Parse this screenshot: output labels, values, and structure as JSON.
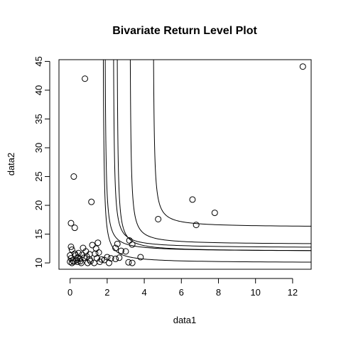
{
  "chart_data": {
    "type": "scatter",
    "title": "Bivariate Return Level Plot",
    "xlabel": "data1",
    "ylabel": "data2",
    "xlim": [
      -0.6,
      13.0
    ],
    "ylim": [
      8.9,
      45.3
    ],
    "x_ticks": [
      0,
      2,
      4,
      6,
      8,
      10,
      12
    ],
    "y_ticks": [
      10,
      15,
      20,
      25,
      30,
      35,
      40,
      45
    ],
    "grid": false,
    "legend": "none",
    "point_color": "#000000",
    "points": [
      [
        12.55,
        44.1
      ],
      [
        0.8,
        42.0
      ],
      [
        0.2,
        25.0
      ],
      [
        1.15,
        20.6
      ],
      [
        6.6,
        21.0
      ],
      [
        7.8,
        18.7
      ],
      [
        4.75,
        17.6
      ],
      [
        6.8,
        16.6
      ],
      [
        0.05,
        16.9
      ],
      [
        0.25,
        16.1
      ],
      [
        3.2,
        13.9
      ],
      [
        3.35,
        13.2
      ],
      [
        2.55,
        13.3
      ],
      [
        2.45,
        12.6
      ],
      [
        2.75,
        12.1
      ],
      [
        3.0,
        12.0
      ],
      [
        3.8,
        11.0
      ],
      [
        3.15,
        10.1
      ],
      [
        3.35,
        10.0
      ],
      [
        2.0,
        11.0
      ],
      [
        2.2,
        10.8
      ],
      [
        2.45,
        10.7
      ],
      [
        2.65,
        10.9
      ],
      [
        1.5,
        13.5
      ],
      [
        1.2,
        13.1
      ],
      [
        1.4,
        12.5
      ],
      [
        1.35,
        11.6
      ],
      [
        1.55,
        11.8
      ],
      [
        1.45,
        10.8
      ],
      [
        1.6,
        10.2
      ],
      [
        1.3,
        10.0
      ],
      [
        0.7,
        12.6
      ],
      [
        0.85,
        12.0
      ],
      [
        0.65,
        11.4
      ],
      [
        0.9,
        11.1
      ],
      [
        1.05,
        10.6
      ],
      [
        0.95,
        10.0
      ],
      [
        0.55,
        10.3
      ],
      [
        0.45,
        11.7
      ],
      [
        0.4,
        10.9
      ],
      [
        0.3,
        11.3
      ],
      [
        0.35,
        10.5
      ],
      [
        0.2,
        10.2
      ],
      [
        0.05,
        12.8
      ],
      [
        0.1,
        12.3
      ],
      [
        0.0,
        11.3
      ],
      [
        0.05,
        10.8
      ],
      [
        0.0,
        10.2
      ],
      [
        0.1,
        10.0
      ],
      [
        1.85,
        10.5
      ],
      [
        1.05,
        11.5
      ],
      [
        0.55,
        10.7
      ],
      [
        0.75,
        10.9
      ],
      [
        0.25,
        11.6
      ],
      [
        2.1,
        10.0
      ],
      [
        1.7,
        10.6
      ],
      [
        0.15,
        10.4
      ],
      [
        1.1,
        10.3
      ],
      [
        0.6,
        10.0
      ],
      [
        0.4,
        10.2
      ]
    ],
    "contours": [
      {
        "asym_x": 1.75,
        "asym_y": 10.0
      },
      {
        "asym_x": 1.85,
        "asym_y": 12.0
      },
      {
        "asym_x": 2.3,
        "asym_y": 12.6
      },
      {
        "asym_x": 2.5,
        "asym_y": 12.0
      },
      {
        "asym_x": 3.2,
        "asym_y": 13.2
      },
      {
        "asym_x": 4.45,
        "asym_y": 16.2
      }
    ]
  }
}
